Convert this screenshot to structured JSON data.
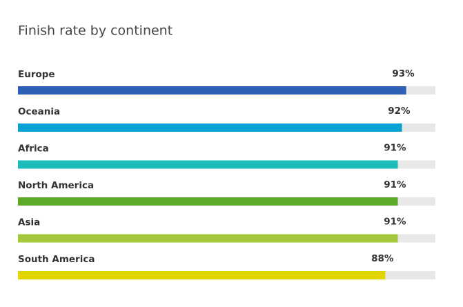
{
  "chart_data": {
    "type": "bar",
    "orientation": "horizontal",
    "title": "Finish rate by continent",
    "categories": [
      "Europe",
      "Oceania",
      "Africa",
      "North America",
      "Asia",
      "South America"
    ],
    "values": [
      93,
      92,
      91,
      91,
      91,
      88
    ],
    "value_labels": [
      "93%",
      "92%",
      "91%",
      "91%",
      "91%",
      "88%"
    ],
    "colors": [
      "#2d5fb5",
      "#0aa2d2",
      "#1cbcbb",
      "#5ea92a",
      "#a3c83b",
      "#e1d500"
    ],
    "xlim": [
      0,
      100
    ]
  }
}
